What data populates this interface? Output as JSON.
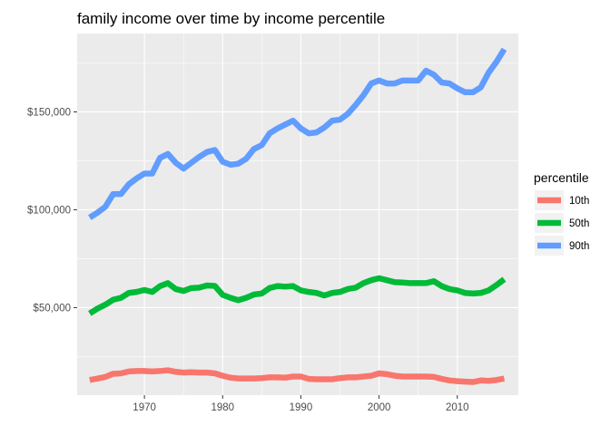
{
  "chart_data": {
    "type": "line",
    "title": "family income over time by income percentile",
    "xlabel": "",
    "ylabel": "",
    "xlim": [
      1961.4,
      2017.8
    ],
    "ylim": [
      5300,
      190000
    ],
    "x_ticks": [
      1970,
      1980,
      1990,
      2000,
      2010
    ],
    "x_tick_labels": [
      "1970",
      "1980",
      "1990",
      "2000",
      "2010"
    ],
    "y_ticks": [
      50000,
      100000,
      150000
    ],
    "y_tick_labels": [
      "$50,000",
      "$100,000",
      "$150,000"
    ],
    "grid": true,
    "panel_background": "#EBEBEB",
    "legend": {
      "title": "percentile",
      "placement": "right"
    },
    "x": [
      1963,
      1964,
      1965,
      1966,
      1967,
      1968,
      1969,
      1970,
      1971,
      1972,
      1973,
      1974,
      1975,
      1976,
      1977,
      1978,
      1979,
      1980,
      1981,
      1982,
      1983,
      1984,
      1985,
      1986,
      1987,
      1988,
      1989,
      1990,
      1991,
      1992,
      1993,
      1994,
      1995,
      1996,
      1997,
      1998,
      1999,
      2000,
      2001,
      2002,
      2003,
      2004,
      2005,
      2006,
      2007,
      2008,
      2009,
      2010,
      2011,
      2012,
      2013,
      2014,
      2015,
      2016
    ],
    "series": [
      {
        "name": "10th",
        "color": "#F8766D",
        "values": [
          13000,
          13800,
          14600,
          16200,
          16400,
          17400,
          17600,
          17600,
          17400,
          17600,
          18000,
          17200,
          16800,
          17000,
          16800,
          16800,
          16400,
          15200,
          14200,
          13800,
          13800,
          13800,
          14000,
          14400,
          14400,
          14200,
          14800,
          14800,
          13600,
          13400,
          13400,
          13400,
          14000,
          14400,
          14400,
          14800,
          15200,
          16400,
          16000,
          15200,
          14800,
          14800,
          14800,
          14800,
          14600,
          13600,
          12800,
          12400,
          12200,
          12000,
          12800,
          12600,
          13000,
          13800
        ]
      },
      {
        "name": "50th",
        "color": "#00BA38",
        "values": [
          47000,
          49500,
          51500,
          54000,
          55000,
          57500,
          58000,
          59000,
          58000,
          61000,
          62500,
          59500,
          58500,
          60000,
          60200,
          61300,
          61100,
          56500,
          55000,
          53800,
          55000,
          56700,
          57200,
          60000,
          61000,
          60700,
          61000,
          58800,
          58000,
          57500,
          56200,
          57500,
          58000,
          59500,
          60200,
          62500,
          64000,
          65000,
          64000,
          63000,
          62800,
          62500,
          62500,
          62500,
          63500,
          61000,
          59500,
          58800,
          57500,
          57200,
          57500,
          58800,
          61500,
          64500
        ]
      },
      {
        "name": "90th",
        "color": "#619CFF",
        "values": [
          96000,
          98500,
          101500,
          108000,
          108000,
          113000,
          116000,
          118500,
          118500,
          126500,
          128500,
          124000,
          121000,
          124000,
          127000,
          129500,
          130500,
          124500,
          123000,
          123500,
          126000,
          131000,
          133000,
          139000,
          141500,
          143500,
          145500,
          141500,
          139000,
          139500,
          142000,
          145500,
          146000,
          149000,
          153500,
          158500,
          164500,
          166000,
          164500,
          164500,
          166000,
          166000,
          166000,
          171000,
          169000,
          165000,
          164500,
          162000,
          160000,
          160000,
          162500,
          170000,
          175500,
          182000
        ]
      }
    ]
  }
}
